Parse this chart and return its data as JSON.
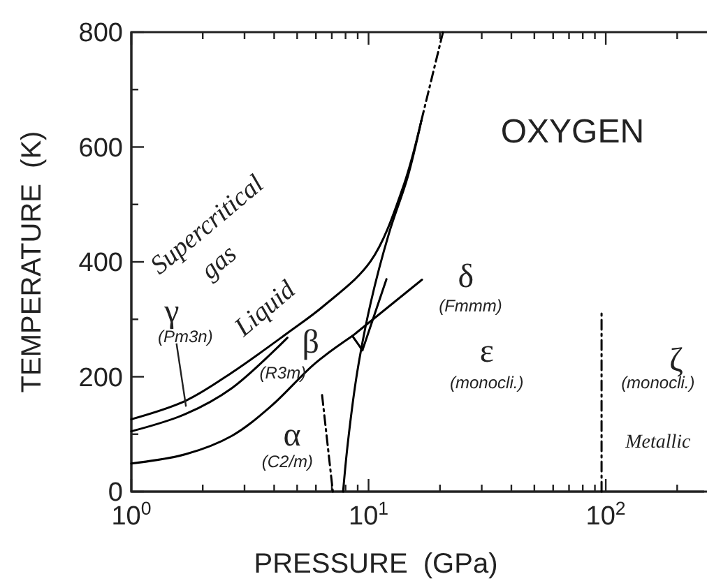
{
  "chart_data": {
    "type": "line",
    "title": "OXYGEN",
    "xlabel": "PRESSURE  (GPa)",
    "ylabel": "TEMPERATURE  (K)",
    "log": "x",
    "marker": "none",
    "xlim": [
      1,
      260
    ],
    "ylim": [
      0,
      800
    ],
    "xticks": [
      {
        "value": 1,
        "label": "10$^{0}$"
      },
      {
        "value": 2,
        "label": null
      },
      {
        "value": 3,
        "label": null
      },
      {
        "value": 4,
        "label": null
      },
      {
        "value": 5,
        "label": null
      },
      {
        "value": 6,
        "label": null
      },
      {
        "value": 7,
        "label": null
      },
      {
        "value": 8,
        "label": null
      },
      {
        "value": 9,
        "label": null
      },
      {
        "value": 10,
        "label": "10$^{1}$"
      },
      {
        "value": 20,
        "label": null
      },
      {
        "value": 30,
        "label": null
      },
      {
        "value": 40,
        "label": null
      },
      {
        "value": 50,
        "label": null
      },
      {
        "value": 60,
        "label": null
      },
      {
        "value": 70,
        "label": null
      },
      {
        "value": 80,
        "label": null
      },
      {
        "value": 90,
        "label": null
      },
      {
        "value": 100,
        "label": "10$^{2}$"
      },
      {
        "value": 200,
        "label": null
      }
    ],
    "yticks": [
      0,
      {
        "value": 100,
        "label": null
      },
      200,
      {
        "value": 300,
        "label": null
      },
      400,
      {
        "value": 500,
        "label": null
      },
      600,
      {
        "value": 700,
        "label": null
      },
      800
    ],
    "series": [
      {
        "color": "#000000",
        "line_style": "solid",
        "x": [
          1,
          1.69,
          2.65,
          4.55,
          6.5,
          10.2,
          14,
          16.7
        ],
        "values": [
          126,
          158,
          207,
          276,
          324,
          401,
          531,
          646
        ]
      },
      {
        "color": "#000000",
        "line_style": "dashed",
        "x": [
          16.7,
          20.6
        ],
        "values": [
          646,
          800
        ]
      },
      {
        "color": "#000000",
        "line_style": "solid",
        "x": [
          1,
          1.69,
          2.65,
          4.55
        ],
        "values": [
          105,
          135,
          180,
          268
        ]
      },
      {
        "color": "#000000",
        "line_style": "solid",
        "x": [
          1,
          1.69,
          2.65,
          3.91,
          5.94,
          8.55
        ],
        "values": [
          49,
          65,
          97,
          150,
          223,
          271
        ]
      },
      {
        "color": "#000000",
        "line_style": "solid",
        "x": [
          8.55,
          16.8
        ],
        "values": [
          271,
          369
        ]
      },
      {
        "color": "#000000",
        "line_style": "solid",
        "x": [
          8.55,
          9.42
        ],
        "values": [
          271,
          246
        ]
      },
      {
        "color": "#000000",
        "line_style": "solid",
        "x": [
          9.42,
          11.9
        ],
        "values": [
          246,
          370
        ]
      },
      {
        "color": "#000000",
        "line_style": "dashed",
        "x": [
          6.37,
          7.07
        ],
        "values": [
          168,
          0
        ]
      },
      {
        "color": "#000000",
        "line_style": "solid",
        "x": [
          7.81,
          8.18,
          8.95,
          10.2,
          12.2,
          14.6,
          16.7
        ],
        "values": [
          0,
          85,
          207,
          328,
          450,
          547,
          646
        ]
      },
      {
        "color": "#000000",
        "line_style": "dashed",
        "x": [
          96,
          96
        ],
        "values": [
          0,
          314
        ]
      }
    ],
    "annotations": [
      "Supercritical",
      "gas",
      {
        "text": "γ",
        "x": 1.7,
        "y": 148
      },
      "(Pm3n)",
      "Liquid",
      "β",
      "(R3m)",
      "α",
      "(C2/m)",
      "δ",
      "(Fmmm)",
      "ε",
      "(monocli.)",
      "ζ",
      "(monocli.)",
      "Metallic"
    ]
  }
}
